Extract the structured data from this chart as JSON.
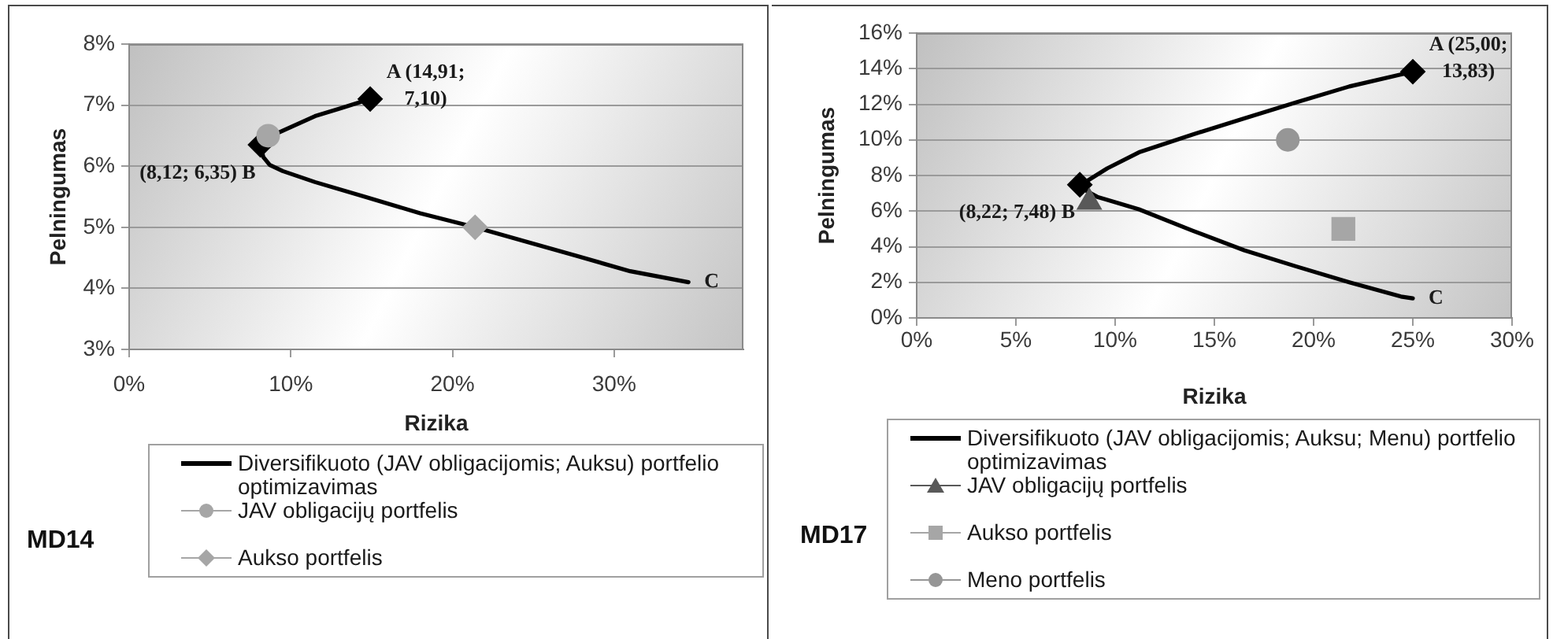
{
  "chart_data": [
    {
      "type": "line",
      "title": "MD14",
      "xlabel": "Rizika",
      "ylabel": "Pelningumas",
      "xlim": [
        0,
        38
      ],
      "xticks": [
        {
          "value": 0,
          "label": "0%"
        },
        {
          "value": 10,
          "label": "10%"
        },
        {
          "value": 20,
          "label": "20%"
        },
        {
          "value": 30,
          "label": "30%"
        }
      ],
      "ylim": [
        3,
        8
      ],
      "yticks": [
        {
          "value": 3,
          "label": "3%"
        },
        {
          "value": 4,
          "label": "4%"
        },
        {
          "value": 5,
          "label": "5%"
        },
        {
          "value": 6,
          "label": "6%"
        },
        {
          "value": 7,
          "label": "7%"
        },
        {
          "value": 8,
          "label": "8%"
        }
      ],
      "grid": "y",
      "legend": "bottom",
      "series": [
        {
          "name": "Diversifikuoto (JAV obligacijomis; Auksu) portfelio optimizavimas",
          "color": "#000000",
          "x": [
            14.91,
            13.1,
            11.5,
            10.5,
            9.5,
            8.6,
            8.12,
            8.3,
            8.7,
            9.5,
            11.5,
            14.7,
            18.0,
            21.4,
            24.5,
            27.7,
            31.0,
            34.6
          ],
          "values": [
            7.1,
            6.95,
            6.82,
            6.7,
            6.58,
            6.47,
            6.35,
            6.15,
            6.02,
            5.92,
            5.74,
            5.49,
            5.23,
            5.0,
            4.77,
            4.53,
            4.28,
            4.1
          ]
        },
        {
          "type": "scatter",
          "color": "#000000",
          "marker": "diamond",
          "x": [
            14.91,
            8.12
          ],
          "values": [
            7.1,
            6.35
          ]
        },
        {
          "name": "JAV obligacijų portfelis",
          "type": "scatter",
          "color": "#a6a6a6",
          "marker": "circle",
          "x": [
            8.6
          ],
          "values": [
            6.5
          ]
        },
        {
          "name": "Aukso portfelis",
          "type": "scatter",
          "color": "#a6a6a6",
          "marker": "diamond",
          "x": [
            21.4
          ],
          "values": [
            5.0
          ]
        }
      ],
      "annotations": [
        {
          "text": "A (14,91; 7,10)",
          "x": 14.91,
          "y": 7.1
        },
        {
          "text": "(8,12; 6,35) B",
          "x": 8.12,
          "y": 6.35
        },
        {
          "text": "C",
          "x": 34.6,
          "y": 4.1
        }
      ]
    },
    {
      "type": "line",
      "title": "MD17",
      "xlabel": "Rizika",
      "ylabel": "Pelningumas",
      "xlim": [
        0,
        30
      ],
      "xticks": [
        {
          "value": 0,
          "label": "0%"
        },
        {
          "value": 5,
          "label": "5%"
        },
        {
          "value": 10,
          "label": "10%"
        },
        {
          "value": 15,
          "label": "15%"
        },
        {
          "value": 20,
          "label": "20%"
        },
        {
          "value": 25,
          "label": "25%"
        },
        {
          "value": 30,
          "label": "30%"
        }
      ],
      "ylim": [
        0,
        16
      ],
      "yticks": [
        {
          "value": 0,
          "label": "0%"
        },
        {
          "value": 2,
          "label": "2%"
        },
        {
          "value": 4,
          "label": "4%"
        },
        {
          "value": 6,
          "label": "6%"
        },
        {
          "value": 8,
          "label": "8%"
        },
        {
          "value": 10,
          "label": "10%"
        },
        {
          "value": 12,
          "label": "12%"
        },
        {
          "value": 14,
          "label": "14%"
        },
        {
          "value": 16,
          "label": "16%"
        }
      ],
      "grid": "y",
      "legend": "bottom",
      "series": [
        {
          "name": "Diversifikuoto (JAV obligacijomis; Auksu; Menu) portfelio optimizavimas",
          "color": "#000000",
          "x": [
            25.0,
            21.8,
            19.1,
            16.5,
            13.9,
            11.2,
            9.6,
            8.6,
            8.22,
            8.6,
            9.1,
            11.2,
            13.9,
            16.5,
            19.1,
            21.8,
            24.4,
            25.0
          ],
          "values": [
            13.83,
            13.0,
            12.1,
            11.2,
            10.3,
            9.3,
            8.4,
            7.7,
            7.48,
            7.1,
            6.8,
            6.1,
            4.9,
            3.8,
            2.9,
            2.0,
            1.2,
            1.1
          ]
        },
        {
          "type": "scatter",
          "color": "#000000",
          "marker": "diamond",
          "x": [
            25.0,
            8.22
          ],
          "values": [
            13.83,
            7.48
          ]
        },
        {
          "name": "JAV obligacijų portfelis",
          "type": "scatter",
          "color": "#595959",
          "marker": "triangle",
          "x": [
            8.7
          ],
          "values": [
            6.5
          ]
        },
        {
          "name": "Aukso portfelis",
          "type": "scatter",
          "color": "#a6a6a6",
          "marker": "square",
          "x": [
            21.5
          ],
          "values": [
            5.0
          ]
        },
        {
          "name": "Meno portfelis",
          "type": "scatter",
          "color": "#969696",
          "marker": "circle",
          "x": [
            18.7
          ],
          "values": [
            10.0
          ]
        }
      ],
      "annotations": [
        {
          "text": "A (25,00; 13,83)",
          "x": 25.0,
          "y": 13.83
        },
        {
          "text": "(8,22; 7,48) B",
          "x": 8.22,
          "y": 7.48
        },
        {
          "text": "C",
          "x": 25.0,
          "y": 1.1
        }
      ]
    }
  ]
}
